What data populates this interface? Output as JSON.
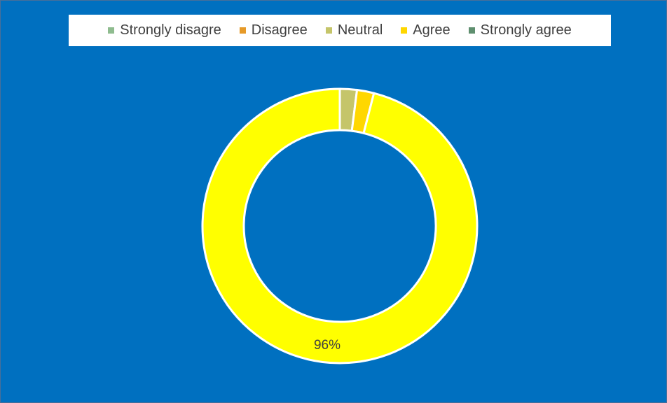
{
  "chart_data": {
    "type": "pie",
    "subtype": "donut",
    "categories": [
      "Strongly disagre",
      "Disagree",
      "Neutral",
      "Agree",
      "Strongly agree"
    ],
    "values": [
      0,
      0,
      2,
      2,
      96
    ],
    "colors": [
      "#8FBC8F",
      "#E69A28",
      "#C5C56A",
      "#FFD700",
      "#5F8F6F"
    ],
    "slice_colors": [
      "#C5C56A",
      "#FFD700",
      "#FFFF00"
    ],
    "data_labels": [
      {
        "category": "Strongly agree",
        "text": "96%"
      }
    ],
    "legend_position": "top",
    "background": "#0070C0"
  }
}
